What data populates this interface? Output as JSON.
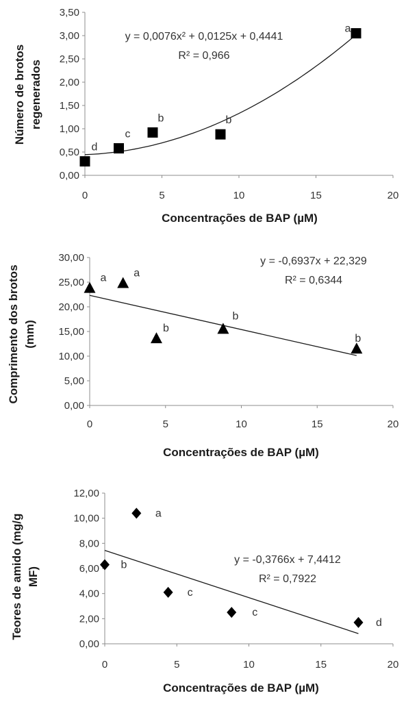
{
  "chart_data": [
    {
      "type": "scatter",
      "marker": "square",
      "x": [
        0,
        2.2,
        4.4,
        8.8,
        17.6
      ],
      "y": [
        0.3,
        0.58,
        0.92,
        0.88,
        3.05
      ],
      "labels": [
        "d",
        "c",
        "b",
        "b",
        "a"
      ],
      "xlim": [
        0,
        20
      ],
      "ylim": [
        0,
        3.5
      ],
      "xticks": [
        "0",
        "5",
        "10",
        "15",
        "20"
      ],
      "yticks": [
        "0,00",
        "0,50",
        "1,00",
        "1,50",
        "2,00",
        "2,50",
        "3,00",
        "3,50"
      ],
      "xlabel": "Concentrações de BAP (µM)",
      "ylabel_lines": [
        "Número de brotos",
        "regenerados"
      ],
      "trendline": {
        "kind": "poly2",
        "a": 0.0076,
        "b": 0.0125,
        "c": 0.4441
      },
      "equation": "y = 0,0076x² + 0,0125x + 0,4441",
      "r2": "R² = 0,966",
      "grid": false
    },
    {
      "type": "scatter",
      "marker": "triangle",
      "x": [
        0,
        2.2,
        4.4,
        8.8,
        17.6
      ],
      "y": [
        23.8,
        24.8,
        13.6,
        15.5,
        11.5
      ],
      "labels": [
        "a",
        "a",
        "b",
        "b",
        "b"
      ],
      "xlim": [
        0,
        20
      ],
      "ylim": [
        0,
        30
      ],
      "xticks": [
        "0",
        "5",
        "10",
        "15",
        "20"
      ],
      "yticks": [
        "0,00",
        "5,00",
        "10,00",
        "15,00",
        "20,00",
        "25,00",
        "30,00"
      ],
      "xlabel": "Concentrações de BAP (µM)",
      "ylabel_lines": [
        "Comprimento dos brotos",
        "(mm)"
      ],
      "trendline": {
        "kind": "linear",
        "m": -0.6937,
        "b": 22.329
      },
      "equation": "y = -0,6937x + 22,329",
      "r2": "R² = 0,6344",
      "grid": false
    },
    {
      "type": "scatter",
      "marker": "diamond",
      "x": [
        0,
        2.2,
        4.4,
        8.8,
        17.6
      ],
      "y": [
        6.3,
        10.4,
        4.1,
        2.5,
        1.7
      ],
      "labels": [
        "b",
        "a",
        "c",
        "c",
        "d"
      ],
      "xlim": [
        0,
        20
      ],
      "ylim": [
        0,
        12
      ],
      "xticks": [
        "0",
        "5",
        "10",
        "15",
        "20"
      ],
      "yticks": [
        "0,00",
        "2,00",
        "4,00",
        "6,00",
        "8,00",
        "10,00",
        "12,00"
      ],
      "xlabel": "Concentrações de BAP (µM)",
      "ylabel_lines": [
        "Teores de amido (mg/g",
        "MF)"
      ],
      "trendline": {
        "kind": "linear",
        "m": -0.3766,
        "b": 7.4412
      },
      "equation": "y = -0,3766x + 7,4412",
      "r2": "R² = 0,7922",
      "grid": false
    }
  ]
}
